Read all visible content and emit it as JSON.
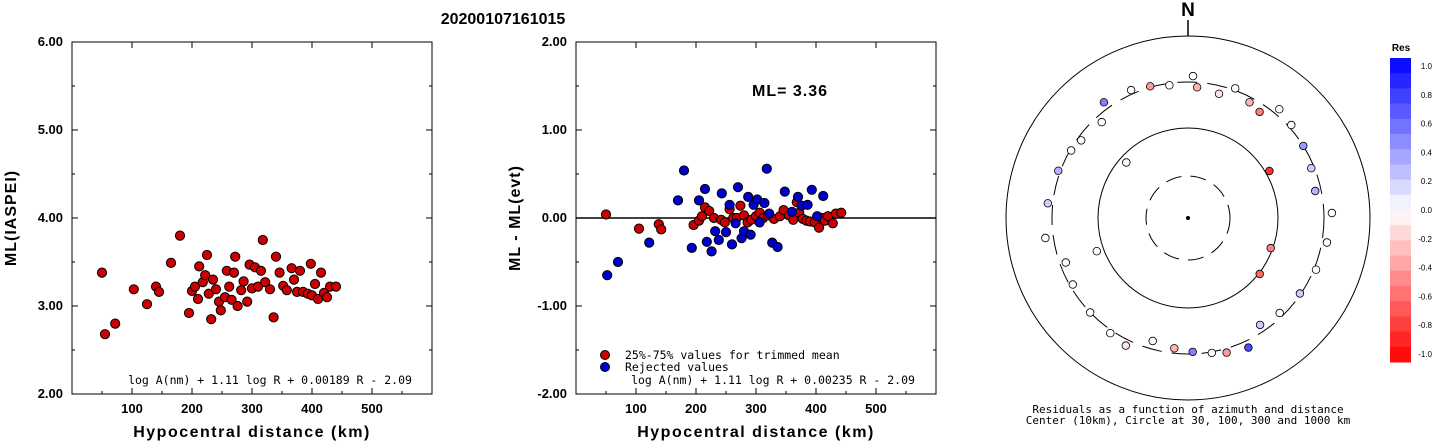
{
  "event_id": "20200107161015",
  "chart_data": [
    {
      "type": "scatter",
      "ylabel": "ML(IASPEI)",
      "xlabel": "Hypocentral distance (km)",
      "xlim": [
        0,
        600
      ],
      "ylim": [
        2.0,
        6.0
      ],
      "xticks": [
        "100",
        "200",
        "300",
        "400",
        "500"
      ],
      "yticks": [
        "2.00",
        "3.00",
        "4.00",
        "5.00",
        "6.00"
      ],
      "formula": "log A(nm) + 1.11 log R + 0.00189 R - 2.09",
      "point_color": "#cc0000",
      "points": [
        [
          50,
          3.38
        ],
        [
          55,
          2.68
        ],
        [
          72,
          2.8
        ],
        [
          103,
          3.19
        ],
        [
          125,
          3.02
        ],
        [
          140,
          3.22
        ],
        [
          145,
          3.16
        ],
        [
          165,
          3.49
        ],
        [
          180,
          3.8
        ],
        [
          195,
          2.92
        ],
        [
          200,
          3.17
        ],
        [
          205,
          3.22
        ],
        [
          210,
          3.08
        ],
        [
          212,
          3.45
        ],
        [
          218,
          3.27
        ],
        [
          222,
          3.35
        ],
        [
          225,
          3.58
        ],
        [
          228,
          3.14
        ],
        [
          232,
          2.85
        ],
        [
          235,
          3.3
        ],
        [
          240,
          3.19
        ],
        [
          245,
          3.05
        ],
        [
          248,
          2.95
        ],
        [
          255,
          3.1
        ],
        [
          258,
          3.4
        ],
        [
          262,
          3.22
        ],
        [
          266,
          3.07
        ],
        [
          270,
          3.38
        ],
        [
          272,
          3.56
        ],
        [
          276,
          3.0
        ],
        [
          282,
          3.18
        ],
        [
          286,
          3.28
        ],
        [
          292,
          3.05
        ],
        [
          296,
          3.47
        ],
        [
          300,
          3.2
        ],
        [
          305,
          3.44
        ],
        [
          310,
          3.22
        ],
        [
          315,
          3.4
        ],
        [
          318,
          3.75
        ],
        [
          322,
          3.27
        ],
        [
          330,
          3.19
        ],
        [
          336,
          2.87
        ],
        [
          340,
          3.56
        ],
        [
          346,
          3.38
        ],
        [
          352,
          3.23
        ],
        [
          358,
          3.18
        ],
        [
          366,
          3.43
        ],
        [
          370,
          3.3
        ],
        [
          375,
          3.16
        ],
        [
          380,
          3.4
        ],
        [
          385,
          3.16
        ],
        [
          393,
          3.14
        ],
        [
          398,
          3.48
        ],
        [
          400,
          3.12
        ],
        [
          405,
          3.25
        ],
        [
          410,
          3.08
        ],
        [
          415,
          3.38
        ],
        [
          420,
          3.15
        ],
        [
          425,
          3.1
        ],
        [
          430,
          3.22
        ],
        [
          440,
          3.22
        ]
      ]
    },
    {
      "type": "scatter",
      "ylabel": "ML - ML(evt)",
      "xlabel": "Hypocentral distance (km)",
      "xlim": [
        0,
        600
      ],
      "ylim": [
        -2.0,
        2.0
      ],
      "xticks": [
        "100",
        "200",
        "300",
        "400",
        "500"
      ],
      "yticks": [
        "-2.00",
        "-1.00",
        "0.00",
        "1.00",
        "2.00"
      ],
      "annotation": "ML= 3.36",
      "formula": "log A(nm) + 1.11 log R + 0.00235 R - 2.09",
      "zero_line": true,
      "legend": [
        {
          "label": "25%-75% values for trimmed mean",
          "color": "#cc0000"
        },
        {
          "label": "Rejected values",
          "color": "#0000cc"
        }
      ],
      "series": [
        {
          "name": "25%-75% values for trimmed mean",
          "color": "#cc0000",
          "points": [
            [
              50,
              0.04
            ],
            [
              105,
              -0.12
            ],
            [
              138,
              -0.07
            ],
            [
              142,
              -0.13
            ],
            [
              196,
              -0.08
            ],
            [
              205,
              -0.03
            ],
            [
              210,
              0.02
            ],
            [
              215,
              0.12
            ],
            [
              222,
              0.08
            ],
            [
              230,
              0.0
            ],
            [
              242,
              -0.02
            ],
            [
              248,
              -0.05
            ],
            [
              256,
              0.1
            ],
            [
              262,
              0.0
            ],
            [
              268,
              0.0
            ],
            [
              274,
              0.14
            ],
            [
              280,
              0.03
            ],
            [
              286,
              -0.05
            ],
            [
              292,
              -0.02
            ],
            [
              300,
              0.02
            ],
            [
              306,
              0.06
            ],
            [
              312,
              0.0
            ],
            [
              320,
              0.03
            ],
            [
              330,
              -0.01
            ],
            [
              340,
              0.02
            ],
            [
              346,
              0.09
            ],
            [
              355,
              0.03
            ],
            [
              362,
              -0.02
            ],
            [
              368,
              0.18
            ],
            [
              372,
              0.06
            ],
            [
              378,
              -0.01
            ],
            [
              384,
              -0.03
            ],
            [
              390,
              -0.04
            ],
            [
              398,
              -0.05
            ],
            [
              405,
              -0.11
            ],
            [
              410,
              0.0
            ],
            [
              415,
              -0.03
            ],
            [
              420,
              0.02
            ],
            [
              428,
              -0.06
            ],
            [
              433,
              0.05
            ],
            [
              442,
              0.06
            ]
          ]
        },
        {
          "name": "Rejected values",
          "color": "#0000cc",
          "points": [
            [
              52,
              -0.65
            ],
            [
              70,
              -0.5
            ],
            [
              122,
              -0.28
            ],
            [
              170,
              0.2
            ],
            [
              180,
              0.54
            ],
            [
              193,
              -0.34
            ],
            [
              205,
              0.2
            ],
            [
              215,
              0.33
            ],
            [
              218,
              -0.27
            ],
            [
              226,
              -0.38
            ],
            [
              232,
              -0.15
            ],
            [
              238,
              -0.25
            ],
            [
              243,
              0.28
            ],
            [
              250,
              -0.16
            ],
            [
              256,
              0.15
            ],
            [
              260,
              -0.3
            ],
            [
              266,
              -0.06
            ],
            [
              270,
              0.35
            ],
            [
              276,
              -0.23
            ],
            [
              280,
              -0.15
            ],
            [
              287,
              0.24
            ],
            [
              291,
              -0.19
            ],
            [
              296,
              0.15
            ],
            [
              302,
              0.21
            ],
            [
              306,
              -0.05
            ],
            [
              314,
              0.17
            ],
            [
              318,
              0.56
            ],
            [
              322,
              0.05
            ],
            [
              327,
              -0.28
            ],
            [
              336,
              -0.33
            ],
            [
              348,
              0.3
            ],
            [
              360,
              0.07
            ],
            [
              370,
              0.24
            ],
            [
              376,
              0.14
            ],
            [
              386,
              0.15
            ],
            [
              393,
              0.32
            ],
            [
              402,
              0.02
            ],
            [
              412,
              0.25
            ]
          ]
        }
      ]
    },
    {
      "type": "scatter",
      "chart_kind": "polar residual map",
      "north_label": "N",
      "caption_line1": "Residuals as a function of azimuth and distance",
      "caption_line2": "Center (10km), Circle at 30, 100, 300 and 1000 km",
      "colorbar_title": "Res",
      "colorbar_ticks": [
        "1.0",
        "0.8",
        "0.6",
        "0.4",
        "0.2",
        "0.0",
        "-0.2",
        "-0.4",
        "-0.6",
        "-0.8",
        "-1.0"
      ],
      "circles_km": [
        30,
        100,
        300,
        1000
      ],
      "stations": [
        {
          "az": 14,
          "dist": 300,
          "res": -0.1
        },
        {
          "az": 4,
          "dist": 300,
          "res": -0.3
        },
        {
          "az": 352,
          "dist": 300,
          "res": 0.0
        },
        {
          "az": 344,
          "dist": 300,
          "res": -0.4
        },
        {
          "az": 336,
          "dist": 300,
          "res": 0.0
        },
        {
          "az": 324,
          "dist": 300,
          "res": 0.5
        },
        {
          "az": 318,
          "dist": 300,
          "res": 0.0
        },
        {
          "az": 306,
          "dist": 300,
          "res": 0.0
        },
        {
          "az": 300,
          "dist": 300,
          "res": 0.0
        },
        {
          "az": 290,
          "dist": 300,
          "res": 0.3
        },
        {
          "az": 276,
          "dist": 300,
          "res": 0.2
        },
        {
          "az": 262,
          "dist": 300,
          "res": 0.0
        },
        {
          "az": 250,
          "dist": 300,
          "res": 0.0
        },
        {
          "az": 240,
          "dist": 300,
          "res": 0.0
        },
        {
          "az": 226,
          "dist": 300,
          "res": 0.0
        },
        {
          "az": 214,
          "dist": 300,
          "res": 0.0
        },
        {
          "az": 206,
          "dist": 300,
          "res": -0.1
        },
        {
          "az": 196,
          "dist": 300,
          "res": 0.0
        },
        {
          "az": 186,
          "dist": 300,
          "res": -0.3
        },
        {
          "az": 178,
          "dist": 300,
          "res": 0.5
        },
        {
          "az": 170,
          "dist": 300,
          "res": 0.0
        },
        {
          "az": 164,
          "dist": 300,
          "res": -0.4
        },
        {
          "az": 155,
          "dist": 300,
          "res": 0.7
        },
        {
          "az": 146,
          "dist": 300,
          "res": 0.2
        },
        {
          "az": 136,
          "dist": 300,
          "res": 0.0
        },
        {
          "az": 124,
          "dist": 300,
          "res": 0.2
        },
        {
          "az": 112,
          "dist": 300,
          "res": 0.0
        },
        {
          "az": 100,
          "dist": 300,
          "res": 0.0
        },
        {
          "az": 88,
          "dist": 300,
          "res": 0.0
        },
        {
          "az": 78,
          "dist": 300,
          "res": 0.3
        },
        {
          "az": 68,
          "dist": 300,
          "res": 0.2
        },
        {
          "az": 58,
          "dist": 300,
          "res": 0.4
        },
        {
          "az": 48,
          "dist": 300,
          "res": 0.0
        },
        {
          "az": 40,
          "dist": 300,
          "res": 0.0
        },
        {
          "az": 34,
          "dist": 300,
          "res": -0.5
        },
        {
          "az": 28,
          "dist": 300,
          "res": -0.3
        },
        {
          "az": 110,
          "dist": 100,
          "res": -0.5
        },
        {
          "az": 128,
          "dist": 100,
          "res": -0.6
        },
        {
          "az": 60,
          "dist": 100,
          "res": -0.8
        },
        {
          "az": 250,
          "dist": 100,
          "res": 0.0
        },
        {
          "az": 312,
          "dist": 100,
          "res": 0.0
        },
        {
          "az": 20,
          "dist": 350,
          "res": 0.0
        },
        {
          "az": 2,
          "dist": 360,
          "res": 0.0
        }
      ]
    }
  ]
}
